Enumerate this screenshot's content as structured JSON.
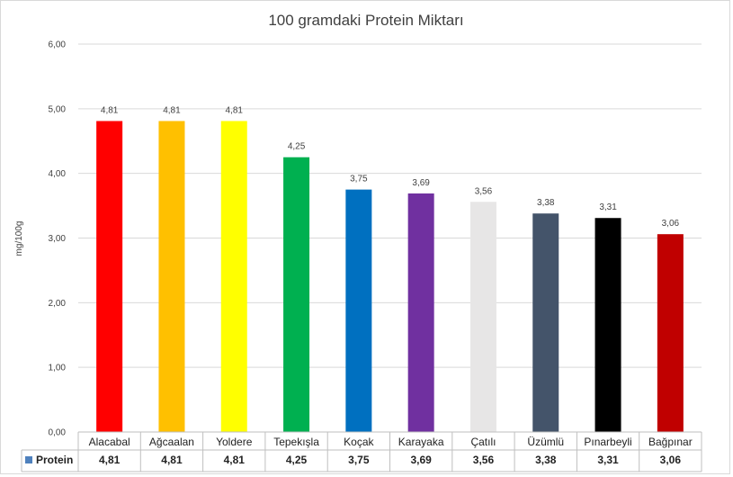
{
  "chart_data": {
    "type": "bar",
    "title": "100 gramdaki Protein Miktarı",
    "ylabel": "mg/100g",
    "ylim": [
      0,
      6
    ],
    "yticks": [
      "0,00",
      "1,00",
      "2,00",
      "3,00",
      "4,00",
      "5,00",
      "6,00"
    ],
    "grid": true,
    "legend": "data-table-left",
    "categories": [
      "Alacabal",
      "Ağcaalan",
      "Yoldere",
      "Tepekışla",
      "Koçak",
      "Karayaka",
      "Çatılı",
      "Üzümlü",
      "Pınarbeyli",
      "Bağpınar"
    ],
    "series": [
      {
        "name": "Protein",
        "values": [
          4.81,
          4.81,
          4.81,
          4.25,
          3.75,
          3.69,
          3.56,
          3.38,
          3.31,
          3.06
        ],
        "labels": [
          "4,81",
          "4,81",
          "4,81",
          "4,25",
          "3,75",
          "3,69",
          "3,56",
          "3,38",
          "3,31",
          "3,06"
        ],
        "colors": [
          "#ff0000",
          "#ffc000",
          "#ffff00",
          "#00b050",
          "#0070c0",
          "#7030a0",
          "#e7e6e6",
          "#44546a",
          "#000000",
          "#c00000"
        ],
        "legend_color": "#4f81bd"
      }
    ]
  }
}
